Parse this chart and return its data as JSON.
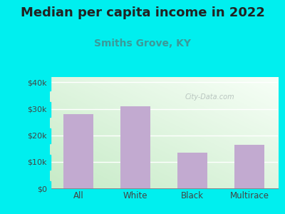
{
  "title": "Median per capita income in 2022",
  "subtitle": "Smiths Grove, KY",
  "categories": [
    "All",
    "White",
    "Black",
    "Multirace"
  ],
  "values": [
    28000,
    31000,
    13500,
    16500
  ],
  "bar_color": "#c2aad0",
  "background_color": "#00efef",
  "plot_bg_left": "#c8e6c0",
  "plot_bg_right": "#f0fff5",
  "title_fontsize": 13,
  "title_color": "#222222",
  "subtitle_fontsize": 10,
  "subtitle_color": "#3a9a9a",
  "tick_color": "#444444",
  "ylim": [
    0,
    42000
  ],
  "yticks": [
    0,
    10000,
    20000,
    30000,
    40000
  ],
  "ytick_labels": [
    "$0",
    "$10k",
    "$20k",
    "$30k",
    "$40k"
  ],
  "watermark": "City-Data.com",
  "watermark_color": "#b0bcb8",
  "grid_color": "#ffffff"
}
